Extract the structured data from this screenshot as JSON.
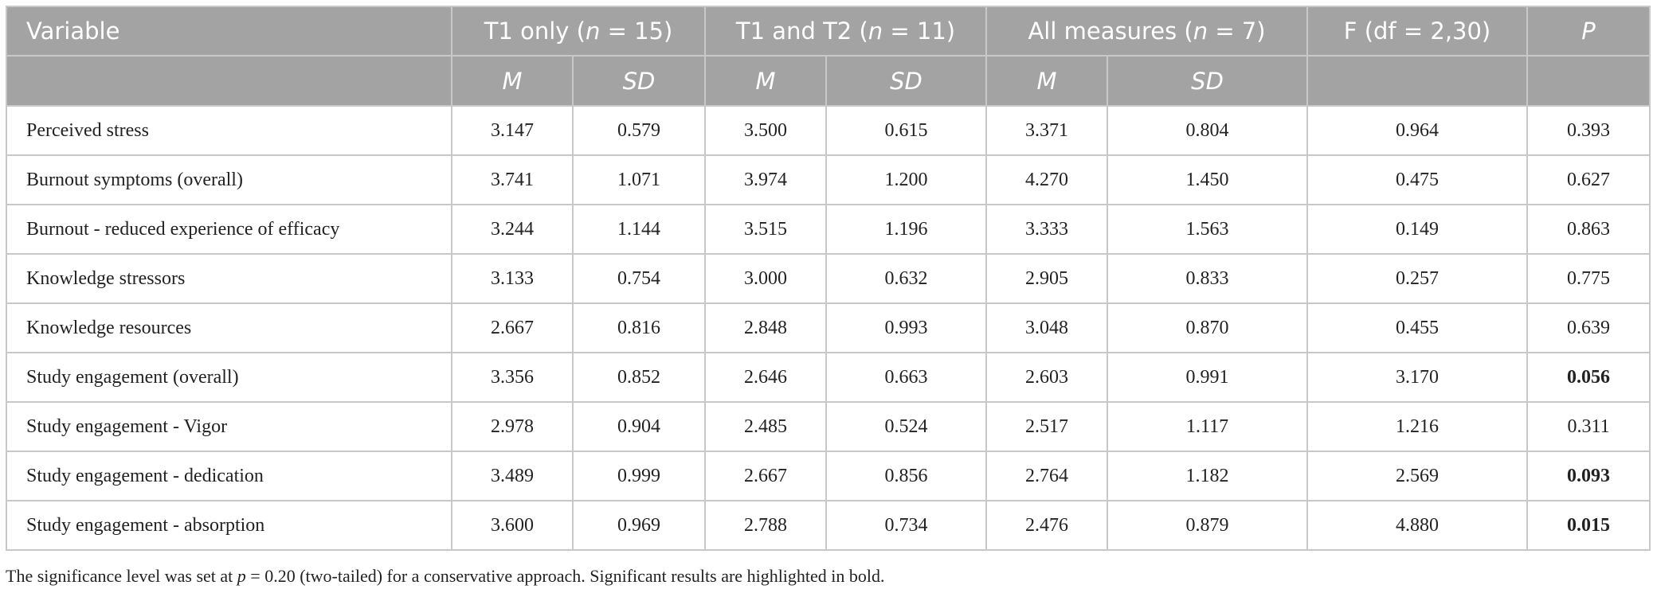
{
  "table": {
    "header": [
      {
        "parts": [
          "Variable"
        ],
        "span": 1
      },
      {
        "parts": [
          "T1 only (",
          {
            "text": "n",
            "italic": true
          },
          " = 15)"
        ],
        "span": 2
      },
      {
        "parts": [
          "T1 and T2 (",
          {
            "text": "n",
            "italic": true
          },
          " = 11)"
        ],
        "span": 2
      },
      {
        "parts": [
          "All measures (",
          {
            "text": "n",
            "italic": true
          },
          " = 7)"
        ],
        "span": 2
      },
      {
        "parts": [
          "F (df = 2,30)"
        ],
        "span": 1
      },
      {
        "parts": [
          {
            "text": "P",
            "italic": true
          }
        ],
        "span": 1
      }
    ],
    "subheader": [
      "M",
      "SD",
      "M",
      "SD",
      "M",
      "SD"
    ],
    "rows": [
      {
        "cells": [
          "Perceived stress",
          "3.147",
          "0.579",
          "3.500",
          "0.615",
          "3.371",
          "0.804",
          "0.964",
          "0.393"
        ],
        "bold_p": false
      },
      {
        "cells": [
          "Burnout symptoms (overall)",
          "3.741",
          "1.071",
          "3.974",
          "1.200",
          "4.270",
          "1.450",
          "0.475",
          "0.627"
        ],
        "bold_p": false
      },
      {
        "cells": [
          "Burnout - reduced experience of efficacy",
          "3.244",
          "1.144",
          "3.515",
          "1.196",
          "3.333",
          "1.563",
          "0.149",
          "0.863"
        ],
        "bold_p": false
      },
      {
        "cells": [
          "Knowledge stressors",
          "3.133",
          "0.754",
          "3.000",
          "0.632",
          "2.905",
          "0.833",
          "0.257",
          "0.775"
        ],
        "bold_p": false
      },
      {
        "cells": [
          "Knowledge resources",
          "2.667",
          "0.816",
          "2.848",
          "0.993",
          "3.048",
          "0.870",
          "0.455",
          "0.639"
        ],
        "bold_p": false
      },
      {
        "cells": [
          "Study engagement (overall)",
          "3.356",
          "0.852",
          "2.646",
          "0.663",
          "2.603",
          "0.991",
          "3.170",
          "0.056"
        ],
        "bold_p": true
      },
      {
        "cells": [
          "Study engagement - Vigor",
          "2.978",
          "0.904",
          "2.485",
          "0.524",
          "2.517",
          "1.117",
          "1.216",
          "0.311"
        ],
        "bold_p": false
      },
      {
        "cells": [
          "Study engagement - dedication",
          "3.489",
          "0.999",
          "2.667",
          "0.856",
          "2.764",
          "1.182",
          "2.569",
          "0.093"
        ],
        "bold_p": true
      },
      {
        "cells": [
          "Study engagement - absorption",
          "3.600",
          "0.969",
          "2.788",
          "0.734",
          "2.476",
          "0.879",
          "4.880",
          "0.015"
        ],
        "bold_p": true
      }
    ]
  },
  "footnote": [
    "The significance level was set at ",
    {
      "text": "p",
      "italic": true
    },
    " = 0.20 (two-tailed) for a conservative approach. Significant results are highlighted in bold."
  ]
}
